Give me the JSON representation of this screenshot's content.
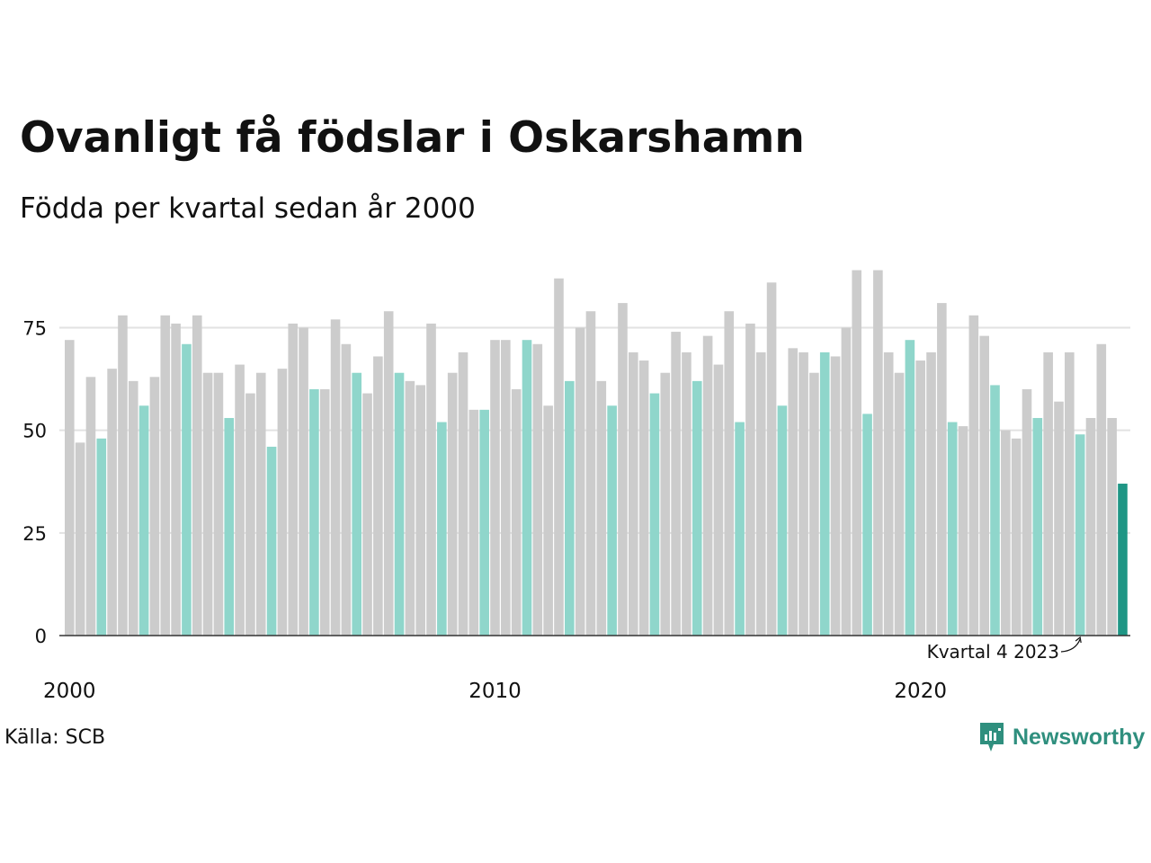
{
  "header": {
    "title": "Ovanligt få födslar i Oskarshamn",
    "subtitle": "Födda per kvartal sedan år 2000"
  },
  "footer": {
    "source": "Källa: SCB",
    "brand": "Newsworthy"
  },
  "colors": {
    "default_bar": "#cccccc",
    "q4_bar": "#8fd6cb",
    "latest_bar": "#1f9685",
    "gridline": "#e2e2e2",
    "axis": "#333333",
    "brand": "#2f8f7e"
  },
  "chart_data": {
    "type": "bar",
    "title": "Ovanligt få födslar i Oskarshamn",
    "subtitle": "Födda per kvartal sedan år 2000",
    "ylim": [
      0,
      90
    ],
    "grid": true,
    "y_ticks": [
      0,
      25,
      50,
      75
    ],
    "x_tick_labels": [
      "2000",
      "2010",
      "2020"
    ],
    "start_year": 2000,
    "annotation": "Kvartal 4 2023",
    "values": [
      72,
      47,
      63,
      48,
      65,
      78,
      62,
      56,
      63,
      78,
      76,
      71,
      78,
      64,
      64,
      53,
      66,
      59,
      64,
      46,
      65,
      76,
      75,
      60,
      60,
      77,
      71,
      64,
      59,
      68,
      79,
      64,
      62,
      61,
      76,
      52,
      64,
      69,
      55,
      55,
      72,
      72,
      60,
      72,
      71,
      56,
      87,
      62,
      75,
      79,
      62,
      56,
      81,
      69,
      67,
      59,
      64,
      74,
      69,
      62,
      73,
      66,
      79,
      52,
      76,
      69,
      86,
      56,
      70,
      69,
      64,
      69,
      68,
      75,
      89,
      54,
      89,
      69,
      64,
      72,
      67,
      69,
      81,
      52,
      51,
      78,
      73,
      61,
      50,
      48,
      60,
      53,
      69,
      57,
      69,
      49,
      53,
      71,
      53,
      37
    ]
  }
}
